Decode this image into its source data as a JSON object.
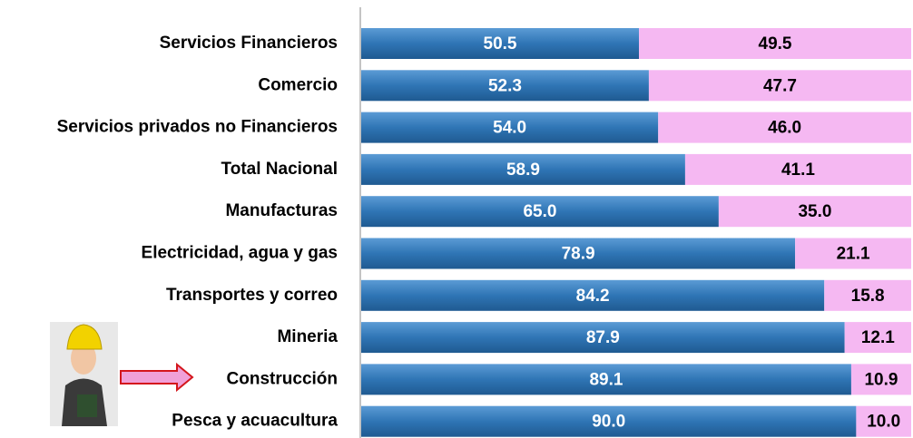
{
  "chart_data": {
    "type": "stacked-bar-horizontal",
    "categories": [
      "Servicios Financieros",
      "Comercio",
      "Servicios privados no Financieros",
      "Total Nacional",
      "Manufacturas",
      "Electricidad, agua y gas",
      "Transportes y correo",
      "Mineria",
      "Construcción",
      "Pesca y acuacultura"
    ],
    "series": [
      {
        "color": "#2f75b5",
        "values": [
          50.5,
          52.3,
          54.0,
          58.9,
          65.0,
          78.9,
          84.2,
          87.9,
          89.1,
          90.0
        ],
        "value_labels": [
          "50.5",
          "52.3",
          "54.0",
          "58.9",
          "65.0",
          "78.9",
          "84.2",
          "87.9",
          "89.1",
          "90.0"
        ]
      },
      {
        "color": "#f5b8f2",
        "values": [
          49.5,
          47.7,
          46.0,
          41.1,
          35.0,
          21.1,
          15.8,
          12.1,
          10.9,
          10.0
        ],
        "value_labels": [
          "49.5",
          "47.7",
          "46.0",
          "41.1",
          "35.0",
          "21.1",
          "15.8",
          "12.1",
          "10.9",
          "10.0"
        ]
      }
    ],
    "xlim": [
      0,
      100
    ]
  }
}
